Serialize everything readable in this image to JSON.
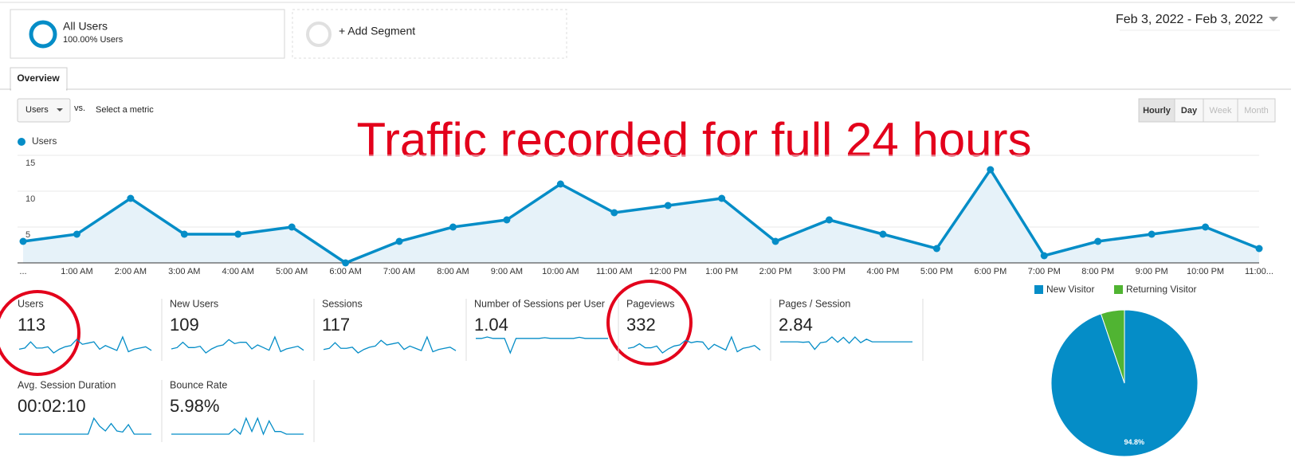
{
  "segments": [
    {
      "name": "All Users",
      "detail": "100.00% Users"
    }
  ],
  "add_segment": "+ Add Segment",
  "date_range": "Feb 3, 2022 - Feb 3, 2022",
  "tab": "Overview",
  "metric_picker": {
    "selected": "Users",
    "vs": "vs.",
    "other": "Select a metric"
  },
  "granularity": [
    "Hourly",
    "Day",
    "Week",
    "Month"
  ],
  "annotation": "Traffic recorded for full 24 hours",
  "chart_data": [
    {
      "type": "line",
      "categories": [
        "...",
        "1:00 AM",
        "2:00 AM",
        "3:00 AM",
        "4:00 AM",
        "5:00 AM",
        "6:00 AM",
        "7:00 AM",
        "8:00 AM",
        "9:00 AM",
        "10:00 AM",
        "11:00 AM",
        "12:00 PM",
        "1:00 PM",
        "2:00 PM",
        "3:00 PM",
        "4:00 PM",
        "5:00 PM",
        "6:00 PM",
        "7:00 PM",
        "8:00 PM",
        "9:00 PM",
        "10:00 PM",
        "11:00..."
      ],
      "series": [
        {
          "name": "Users",
          "color": "#058dc7",
          "values": [
            3,
            4,
            9,
            4,
            4,
            5,
            0,
            3,
            5,
            6,
            11,
            7,
            8,
            9,
            3,
            6,
            4,
            2,
            13,
            1,
            3,
            4,
            5,
            2
          ]
        }
      ],
      "ylim": [
        0,
        15
      ],
      "yticks": [
        5,
        10,
        15
      ],
      "grid": true
    },
    {
      "type": "pie",
      "categories": [
        "New Visitor",
        "Returning Visitor"
      ],
      "values": [
        94.8,
        5.2
      ],
      "value_labels": [
        "94.8%",
        null
      ],
      "colors": [
        "#058dc7",
        "#50b432"
      ]
    }
  ],
  "metrics": [
    {
      "label": "Users",
      "value": 113,
      "trend": [
        3,
        4,
        9,
        4,
        4,
        5,
        0,
        3,
        5,
        6,
        11,
        7,
        8,
        9,
        3,
        6,
        4,
        2,
        13,
        1,
        3,
        4,
        5,
        2
      ]
    },
    {
      "label": "New Users",
      "value": 109,
      "trend": [
        3,
        4,
        8,
        4,
        4,
        5,
        0,
        3,
        5,
        6,
        10,
        7,
        8,
        8,
        3,
        6,
        4,
        2,
        12,
        1,
        3,
        4,
        5,
        2
      ]
    },
    {
      "label": "Sessions",
      "value": 117,
      "trend": [
        3,
        4,
        9,
        4,
        4,
        5,
        0,
        3,
        5,
        6,
        11,
        7,
        8,
        9,
        3,
        6,
        4,
        2,
        14,
        1,
        3,
        4,
        5,
        2
      ]
    },
    {
      "label": "Number of Sessions per User",
      "value": 1.04,
      "trend": [
        1,
        1,
        1.1,
        1,
        1,
        1,
        0,
        1,
        1,
        1,
        1,
        1,
        1.05,
        1,
        1,
        1,
        1,
        1,
        1.08,
        1,
        1,
        1,
        1,
        1
      ]
    },
    {
      "label": "Pageviews",
      "value": 332,
      "trend": [
        8,
        10,
        16,
        9,
        9,
        12,
        0,
        7,
        12,
        14,
        22,
        18,
        20,
        19,
        6,
        15,
        10,
        5,
        28,
        2,
        8,
        10,
        13,
        5
      ]
    },
    {
      "label": "Pages / Session",
      "value": 2.84,
      "trend": [
        2.5,
        2.5,
        2.5,
        2.5,
        2.4,
        2.5,
        0.8,
        2.3,
        2.5,
        3.6,
        2.4,
        3.5,
        2.2,
        3.6,
        2.3,
        3.1,
        2.5,
        2.5,
        2.5,
        2.5,
        2.5,
        2.5,
        2.5,
        2.5
      ]
    },
    {
      "label": "Avg. Session Duration",
      "value": "00:02:10",
      "trend": [
        0,
        0,
        0,
        0,
        0,
        0,
        0,
        0,
        0,
        0,
        0,
        0,
        0,
        300,
        150,
        60,
        200,
        60,
        40,
        180,
        0,
        0,
        0,
        0
      ]
    },
    {
      "label": "Bounce Rate",
      "value": "5.98%",
      "trend": [
        0,
        0,
        0,
        0,
        0,
        0,
        0,
        0,
        0,
        0,
        0,
        10,
        0,
        30,
        5,
        30,
        0,
        25,
        5,
        5,
        0,
        0,
        0,
        0
      ]
    }
  ]
}
